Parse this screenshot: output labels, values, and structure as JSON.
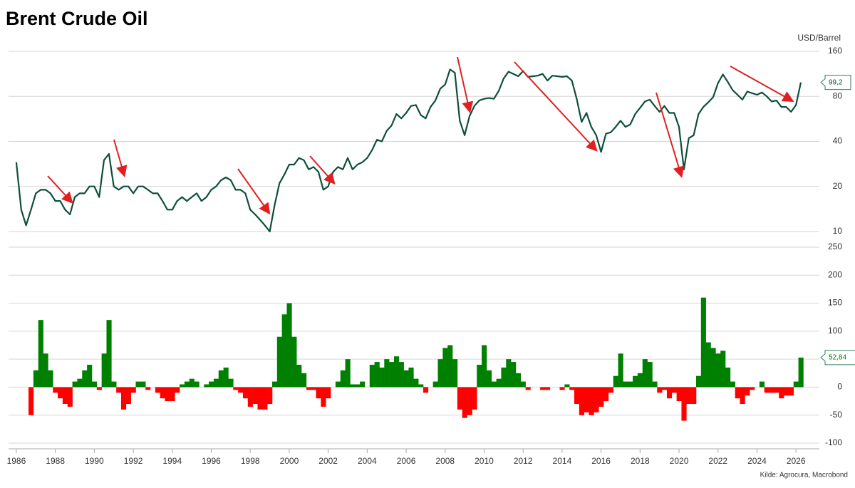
{
  "chart_data": [
    {
      "type": "line",
      "title": "Brent Crude Oil",
      "y_label": "USD/Barrel",
      "log_scale": true,
      "grid": true,
      "color": "#0d4f3c",
      "end_label": "99,2",
      "x": [
        1986,
        1986.25,
        1986.5,
        1986.75,
        1987,
        1987.25,
        1987.5,
        1987.75,
        1988,
        1988.25,
        1988.5,
        1988.75,
        1989,
        1989.25,
        1989.5,
        1989.75,
        1990,
        1990.25,
        1990.5,
        1990.75,
        1991,
        1991.25,
        1991.5,
        1991.75,
        1992,
        1992.25,
        1992.5,
        1992.75,
        1993,
        1993.25,
        1993.5,
        1993.75,
        1994,
        1994.25,
        1994.5,
        1994.75,
        1995,
        1995.25,
        1995.5,
        1995.75,
        1996,
        1996.25,
        1996.5,
        1996.75,
        1997,
        1997.25,
        1997.5,
        1997.75,
        1998,
        1998.25,
        1998.5,
        1998.75,
        1999,
        1999.25,
        1999.5,
        1999.75,
        2000,
        2000.25,
        2000.5,
        2000.75,
        2001,
        2001.25,
        2001.5,
        2001.75,
        2002,
        2002.25,
        2002.5,
        2002.75,
        2003,
        2003.25,
        2003.5,
        2003.75,
        2004,
        2004.25,
        2004.5,
        2004.75,
        2005,
        2005.25,
        2005.5,
        2005.75,
        2006,
        2006.25,
        2006.5,
        2006.75,
        2007,
        2007.25,
        2007.5,
        2007.75,
        2008,
        2008.25,
        2008.5,
        2008.75,
        2009,
        2009.25,
        2009.5,
        2009.75,
        2010,
        2010.25,
        2010.5,
        2010.75,
        2011,
        2011.25,
        2011.5,
        2011.75,
        2012,
        2012.25,
        2012.5,
        2012.75,
        2013,
        2013.25,
        2013.5,
        2013.75,
        2014,
        2014.25,
        2014.5,
        2014.75,
        2015,
        2015.25,
        2015.5,
        2015.75,
        2016,
        2016.25,
        2016.5,
        2016.75,
        2017,
        2017.25,
        2017.5,
        2017.75,
        2018,
        2018.25,
        2018.5,
        2018.75,
        2019,
        2019.25,
        2019.5,
        2019.75,
        2020,
        2020.25,
        2020.5,
        2020.75,
        2021,
        2021.25,
        2021.5,
        2021.75,
        2022,
        2022.25,
        2022.5,
        2022.75,
        2023,
        2023.25,
        2023.5,
        2023.75,
        2024,
        2024.25,
        2024.5,
        2024.75,
        2025,
        2025.25,
        2025.5,
        2025.75,
        2026,
        2026.25
      ],
      "values": [
        29,
        14,
        11,
        14,
        18,
        19,
        19,
        18,
        16,
        16,
        14,
        13,
        17,
        18,
        18,
        20,
        20,
        17,
        30,
        33,
        20,
        19,
        20,
        20,
        18,
        20,
        20,
        19,
        18,
        18,
        16,
        14,
        14,
        16,
        17,
        16,
        17,
        18,
        16,
        17,
        19,
        20,
        22,
        23,
        22,
        19,
        19,
        18,
        14,
        13,
        12,
        11,
        10,
        15,
        21,
        24,
        28,
        28,
        31,
        30,
        26,
        27,
        25,
        19,
        20,
        25,
        27,
        26,
        31,
        26,
        28,
        29,
        31,
        35,
        41,
        40,
        47,
        51,
        61,
        57,
        62,
        69,
        70,
        60,
        57,
        68,
        75,
        90,
        96,
        121,
        115,
        55,
        44,
        59,
        69,
        75,
        77,
        78,
        77,
        87,
        105,
        117,
        113,
        109,
        118,
        108,
        109,
        110,
        113,
        102,
        110,
        109,
        108,
        109,
        102,
        77,
        54,
        62,
        50,
        44,
        34,
        45,
        46,
        50,
        55,
        50,
        52,
        61,
        67,
        74,
        76,
        69,
        63,
        69,
        62,
        62,
        50,
        26,
        42,
        44,
        61,
        68,
        73,
        79,
        98,
        112,
        100,
        88,
        82,
        76,
        86,
        84,
        82,
        85,
        80,
        74,
        75,
        68,
        68,
        63,
        70,
        99.2
      ],
      "xlim": [
        1985.6,
        2027.2
      ],
      "ylim": [
        9,
        160
      ],
      "yticks": [
        10,
        20,
        40,
        80,
        160
      ]
    },
    {
      "type": "area",
      "source": "Kilde: Agrocura, Macrobond",
      "grid": true,
      "color_positive": "#008000",
      "color_negative": "#ff0000",
      "end_label": "52,84",
      "x": [
        1986,
        1986.25,
        1986.5,
        1986.75,
        1987,
        1987.25,
        1987.5,
        1987.75,
        1988,
        1988.25,
        1988.5,
        1988.75,
        1989,
        1989.25,
        1989.5,
        1989.75,
        1990,
        1990.25,
        1990.5,
        1990.75,
        1991,
        1991.25,
        1991.5,
        1991.75,
        1992,
        1992.25,
        1992.5,
        1992.75,
        1993,
        1993.25,
        1993.5,
        1993.75,
        1994,
        1994.25,
        1994.5,
        1994.75,
        1995,
        1995.25,
        1995.5,
        1995.75,
        1996,
        1996.25,
        1996.5,
        1996.75,
        1997,
        1997.25,
        1997.5,
        1997.75,
        1998,
        1998.25,
        1998.5,
        1998.75,
        1999,
        1999.25,
        1999.5,
        1999.75,
        2000,
        2000.25,
        2000.5,
        2000.75,
        2001,
        2001.25,
        2001.5,
        2001.75,
        2002,
        2002.25,
        2002.5,
        2002.75,
        2003,
        2003.25,
        2003.5,
        2003.75,
        2004,
        2004.25,
        2004.5,
        2004.75,
        2005,
        2005.25,
        2005.5,
        2005.75,
        2006,
        2006.25,
        2006.5,
        2006.75,
        2007,
        2007.25,
        2007.5,
        2007.75,
        2008,
        2008.25,
        2008.5,
        2008.75,
        2009,
        2009.25,
        2009.5,
        2009.75,
        2010,
        2010.25,
        2010.5,
        2010.75,
        2011,
        2011.25,
        2011.5,
        2011.75,
        2012,
        2012.25,
        2012.5,
        2012.75,
        2013,
        2013.25,
        2013.5,
        2013.75,
        2014,
        2014.25,
        2014.5,
        2014.75,
        2015,
        2015.25,
        2015.5,
        2015.75,
        2016,
        2016.25,
        2016.5,
        2016.75,
        2017,
        2017.25,
        2017.5,
        2017.75,
        2018,
        2018.25,
        2018.5,
        2018.75,
        2019,
        2019.25,
        2019.5,
        2019.75,
        2020,
        2020.25,
        2020.5,
        2020.75,
        2021,
        2021.25,
        2021.5,
        2021.75,
        2022,
        2022.25,
        2022.5,
        2022.75,
        2023,
        2023.25,
        2023.5,
        2023.75,
        2024,
        2024.25,
        2024.5,
        2024.75,
        2025,
        2025.25,
        2025.5,
        2025.75,
        2026,
        2026.25
      ],
      "values": [
        null,
        null,
        null,
        -50,
        30,
        120,
        60,
        30,
        -10,
        -20,
        -30,
        -35,
        10,
        15,
        30,
        40,
        10,
        -5,
        60,
        120,
        10,
        -10,
        -40,
        -30,
        -10,
        10,
        10,
        -5,
        0,
        -10,
        -20,
        -25,
        -25,
        -10,
        5,
        10,
        15,
        10,
        0,
        5,
        10,
        15,
        30,
        35,
        15,
        -5,
        -10,
        -20,
        -35,
        -30,
        -40,
        -40,
        -30,
        10,
        90,
        130,
        150,
        90,
        40,
        25,
        -5,
        -5,
        -20,
        -35,
        -20,
        0,
        10,
        30,
        50,
        5,
        5,
        10,
        0,
        40,
        45,
        35,
        50,
        45,
        55,
        45,
        30,
        35,
        15,
        5,
        -10,
        0,
        10,
        50,
        70,
        75,
        50,
        -40,
        -55,
        -50,
        -40,
        40,
        75,
        30,
        10,
        15,
        35,
        50,
        45,
        25,
        10,
        -5,
        0,
        0,
        -5,
        -5,
        0,
        0,
        -5,
        5,
        -5,
        -30,
        -50,
        -45,
        -50,
        -45,
        -35,
        -25,
        -10,
        20,
        60,
        10,
        10,
        20,
        25,
        50,
        45,
        10,
        -10,
        -5,
        -20,
        -10,
        -25,
        -60,
        -30,
        -30,
        20,
        160,
        80,
        70,
        60,
        65,
        35,
        10,
        -20,
        -30,
        -15,
        -5,
        0,
        10,
        -10,
        -10,
        -10,
        -20,
        -15,
        -15,
        10,
        52.84
      ],
      "xlim": [
        1985.6,
        2027.2
      ],
      "ylim": [
        -100,
        250
      ],
      "yticks": [
        -100,
        -50,
        0,
        50,
        100,
        150,
        200,
        250
      ],
      "xticks": [
        1986,
        1988,
        1990,
        1992,
        1994,
        1996,
        1998,
        2000,
        2002,
        2004,
        2006,
        2008,
        2010,
        2012,
        2014,
        2016,
        2018,
        2020,
        2022,
        2024,
        2026
      ]
    }
  ]
}
